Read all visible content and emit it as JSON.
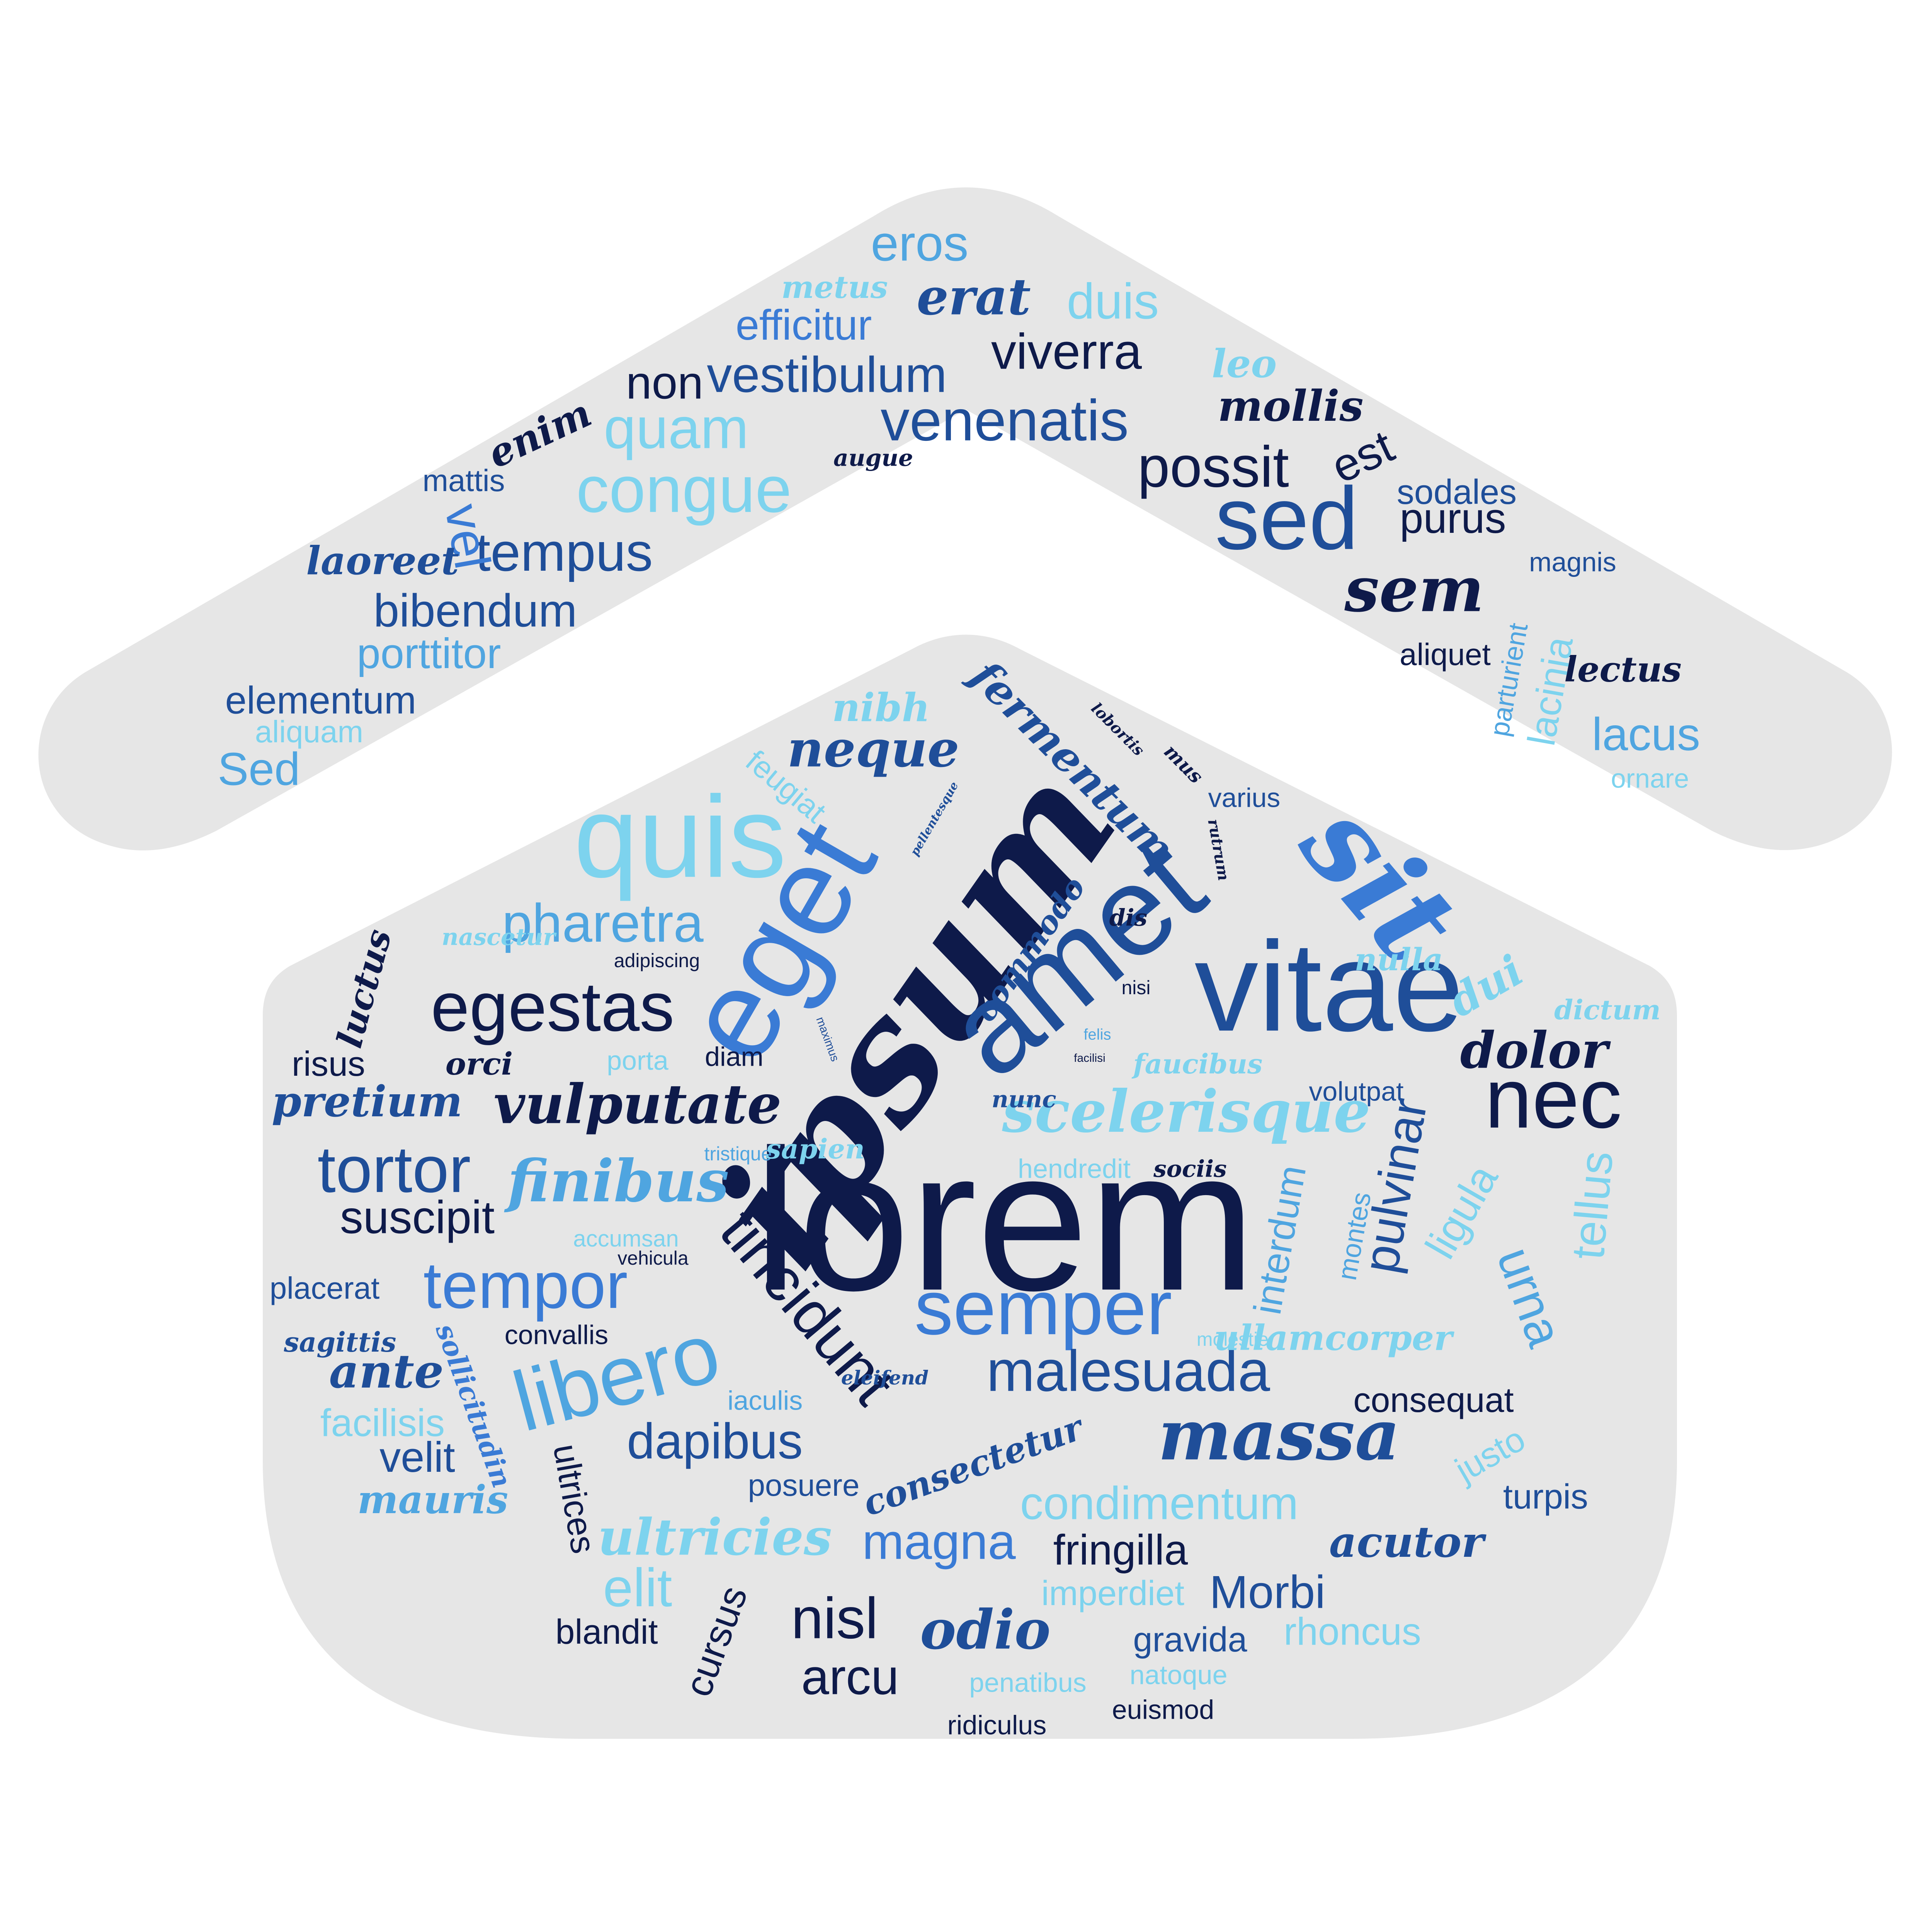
{
  "palette": {
    "background": "#ffffff",
    "shape_fill": "#e6e6e6",
    "navy": "#0e1a4a",
    "blue": "#1f4e99",
    "mid": "#3a7bd5",
    "light": "#7dd3ee",
    "sky": "#4fa5e0"
  },
  "words": [
    {
      "text": "lorem"
    },
    {
      "text": "ipsum"
    },
    {
      "text": "amet"
    },
    {
      "text": "vitae"
    },
    {
      "text": "eget"
    },
    {
      "text": "sit"
    },
    {
      "text": "quis"
    },
    {
      "text": "nec"
    },
    {
      "text": "sed"
    },
    {
      "text": "semper"
    },
    {
      "text": "libero"
    },
    {
      "text": "egestas"
    },
    {
      "text": "tincidunt"
    },
    {
      "text": "tortor"
    },
    {
      "text": "massa"
    },
    {
      "text": "congue"
    },
    {
      "text": "tempor"
    },
    {
      "text": "scelerisque"
    },
    {
      "text": "vulputate"
    },
    {
      "text": "venenatis"
    },
    {
      "text": "malesuada"
    },
    {
      "text": "possit"
    },
    {
      "text": "quam"
    },
    {
      "text": "sem"
    },
    {
      "text": "dolor"
    },
    {
      "text": "pharetra"
    },
    {
      "text": "tempus"
    },
    {
      "text": "nisl"
    },
    {
      "text": "vestibulum"
    },
    {
      "text": "viverra"
    },
    {
      "text": "eros"
    },
    {
      "text": "erat"
    },
    {
      "text": "duis"
    },
    {
      "text": "efficitur"
    },
    {
      "text": "non"
    },
    {
      "text": "enim"
    },
    {
      "text": "mollis"
    },
    {
      "text": "est"
    },
    {
      "text": "bibendum"
    },
    {
      "text": "vel"
    },
    {
      "text": "purus"
    },
    {
      "text": "sodales"
    },
    {
      "text": "porttitor"
    },
    {
      "text": "elementum"
    },
    {
      "text": "Sed"
    },
    {
      "text": "aliquam"
    },
    {
      "text": "laoreet"
    },
    {
      "text": "mattis"
    },
    {
      "text": "metus"
    },
    {
      "text": "leo"
    },
    {
      "text": "augue"
    },
    {
      "text": "magnis"
    },
    {
      "text": "aliquet"
    },
    {
      "text": "lectus"
    },
    {
      "text": "parturient"
    },
    {
      "text": "lacinia"
    },
    {
      "text": "lacus"
    },
    {
      "text": "ornare"
    },
    {
      "text": "finibus"
    },
    {
      "text": "suscipit"
    },
    {
      "text": "pulvinar"
    },
    {
      "text": "interdum"
    },
    {
      "text": "ligula"
    },
    {
      "text": "urna"
    },
    {
      "text": "tellus"
    },
    {
      "text": "dapibus"
    },
    {
      "text": "ultricies"
    },
    {
      "text": "elit"
    },
    {
      "text": "magna"
    },
    {
      "text": "fringilla"
    },
    {
      "text": "odio"
    },
    {
      "text": "arcu"
    },
    {
      "text": "imperdiet"
    },
    {
      "text": "Morbi"
    },
    {
      "text": "acutor"
    },
    {
      "text": "condimentum"
    },
    {
      "text": "consequat"
    },
    {
      "text": "consectetur"
    },
    {
      "text": "ultrices"
    },
    {
      "text": "posuere"
    },
    {
      "text": "iaculis"
    },
    {
      "text": "velit"
    },
    {
      "text": "facilisis"
    },
    {
      "text": "mauris"
    },
    {
      "text": "ante"
    },
    {
      "text": "sagittis"
    },
    {
      "text": "sollicitudin"
    },
    {
      "text": "convallis"
    },
    {
      "text": "placerat"
    },
    {
      "text": "vehicula"
    },
    {
      "text": "accumsan"
    },
    {
      "text": "tristique"
    },
    {
      "text": "risus"
    },
    {
      "text": "orci"
    },
    {
      "text": "pretium"
    },
    {
      "text": "luctus"
    },
    {
      "text": "nascetur"
    },
    {
      "text": "adipiscing"
    },
    {
      "text": "porta"
    },
    {
      "text": "diam"
    },
    {
      "text": "sapien"
    },
    {
      "text": "hendredit"
    },
    {
      "text": "sociis"
    },
    {
      "text": "nunc"
    },
    {
      "text": "faucibus"
    },
    {
      "text": "felis"
    },
    {
      "text": "facilisi"
    },
    {
      "text": "nisi"
    },
    {
      "text": "maximus"
    },
    {
      "text": "commodo"
    },
    {
      "text": "dis"
    },
    {
      "text": "fermentum"
    },
    {
      "text": "nibh"
    },
    {
      "text": "neque"
    },
    {
      "text": "feugiat"
    },
    {
      "text": "lobortis"
    },
    {
      "text": "mus"
    },
    {
      "text": "varius"
    },
    {
      "text": "pellentesque"
    },
    {
      "text": "rutrum"
    },
    {
      "text": "nulla"
    },
    {
      "text": "dui"
    },
    {
      "text": "dictum"
    },
    {
      "text": "volutpat"
    },
    {
      "text": "montes"
    },
    {
      "text": "justo"
    },
    {
      "text": "turpis"
    },
    {
      "text": "molestie"
    },
    {
      "text": "ullamcorper"
    },
    {
      "text": "eleifend"
    },
    {
      "text": "gravida"
    },
    {
      "text": "rhoncus"
    },
    {
      "text": "penatibus"
    },
    {
      "text": "natoque"
    },
    {
      "text": "euismod"
    },
    {
      "text": "ridiculus"
    },
    {
      "text": "blandit"
    },
    {
      "text": "cursus"
    }
  ]
}
